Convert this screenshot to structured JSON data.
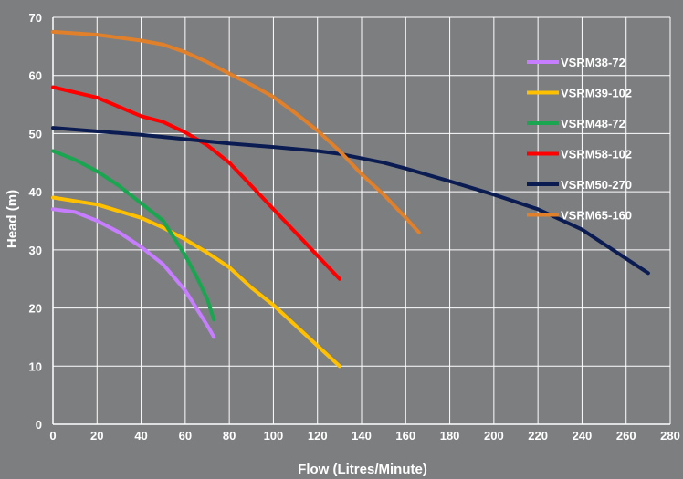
{
  "chart_data": {
    "type": "line",
    "xlabel": "Flow (Litres/Minute)",
    "ylabel": "Head (m)",
    "xlim": [
      0,
      280
    ],
    "ylim": [
      0,
      70
    ],
    "x_ticks": [
      0,
      20,
      40,
      60,
      80,
      100,
      120,
      140,
      160,
      180,
      200,
      220,
      240,
      260,
      280
    ],
    "y_ticks": [
      0,
      10,
      20,
      30,
      40,
      50,
      60,
      70
    ],
    "grid": true,
    "legend_position": "top-right",
    "series": [
      {
        "name": "VSRM38-72",
        "color": "#c77dff",
        "points": [
          [
            0,
            37
          ],
          [
            10,
            36.5
          ],
          [
            20,
            35
          ],
          [
            30,
            33
          ],
          [
            40,
            30.5
          ],
          [
            50,
            27.5
          ],
          [
            60,
            23
          ],
          [
            65,
            20
          ],
          [
            70,
            17
          ],
          [
            73,
            15
          ]
        ]
      },
      {
        "name": "VSRM39-102",
        "color": "#ffc000",
        "points": [
          [
            0,
            39
          ],
          [
            20,
            37.8
          ],
          [
            40,
            35.5
          ],
          [
            50,
            33.8
          ],
          [
            60,
            31.8
          ],
          [
            70,
            29.5
          ],
          [
            80,
            27
          ],
          [
            90,
            23.5
          ],
          [
            100,
            20.5
          ],
          [
            110,
            17
          ],
          [
            120,
            13.5
          ],
          [
            130,
            10
          ]
        ]
      },
      {
        "name": "VSRM48-72",
        "color": "#1aa650",
        "points": [
          [
            0,
            47
          ],
          [
            10,
            45.5
          ],
          [
            20,
            43.5
          ],
          [
            30,
            41
          ],
          [
            40,
            38
          ],
          [
            50,
            35
          ],
          [
            55,
            32
          ],
          [
            60,
            29
          ],
          [
            65,
            25.5
          ],
          [
            70,
            21.5
          ],
          [
            73,
            18
          ]
        ]
      },
      {
        "name": "VSRM58-102",
        "color": "#ff0000",
        "points": [
          [
            0,
            58
          ],
          [
            20,
            56.2
          ],
          [
            40,
            53
          ],
          [
            50,
            52
          ],
          [
            60,
            50.2
          ],
          [
            70,
            48
          ],
          [
            80,
            45
          ],
          [
            90,
            41
          ],
          [
            100,
            37
          ],
          [
            110,
            33
          ],
          [
            120,
            29
          ],
          [
            130,
            25
          ]
        ]
      },
      {
        "name": "VSRM50-270",
        "color": "#0b1c52",
        "points": [
          [
            0,
            51
          ],
          [
            40,
            49.8
          ],
          [
            80,
            48.3
          ],
          [
            100,
            47.7
          ],
          [
            120,
            47
          ],
          [
            130,
            46.5
          ],
          [
            150,
            45
          ],
          [
            160,
            44
          ],
          [
            180,
            41.8
          ],
          [
            200,
            39.5
          ],
          [
            220,
            37
          ],
          [
            240,
            33.5
          ],
          [
            260,
            28.5
          ],
          [
            270,
            26
          ]
        ]
      },
      {
        "name": "VSRM65-160",
        "color": "#e0802a",
        "points": [
          [
            0,
            67.5
          ],
          [
            20,
            67
          ],
          [
            40,
            66
          ],
          [
            50,
            65.3
          ],
          [
            60,
            64
          ],
          [
            70,
            62.3
          ],
          [
            80,
            60.3
          ],
          [
            90,
            58.4
          ],
          [
            100,
            56.3
          ],
          [
            110,
            53.5
          ],
          [
            120,
            50.5
          ],
          [
            130,
            47
          ],
          [
            140,
            43
          ],
          [
            150,
            39.5
          ],
          [
            160,
            35.5
          ],
          [
            166,
            33
          ]
        ]
      }
    ]
  }
}
